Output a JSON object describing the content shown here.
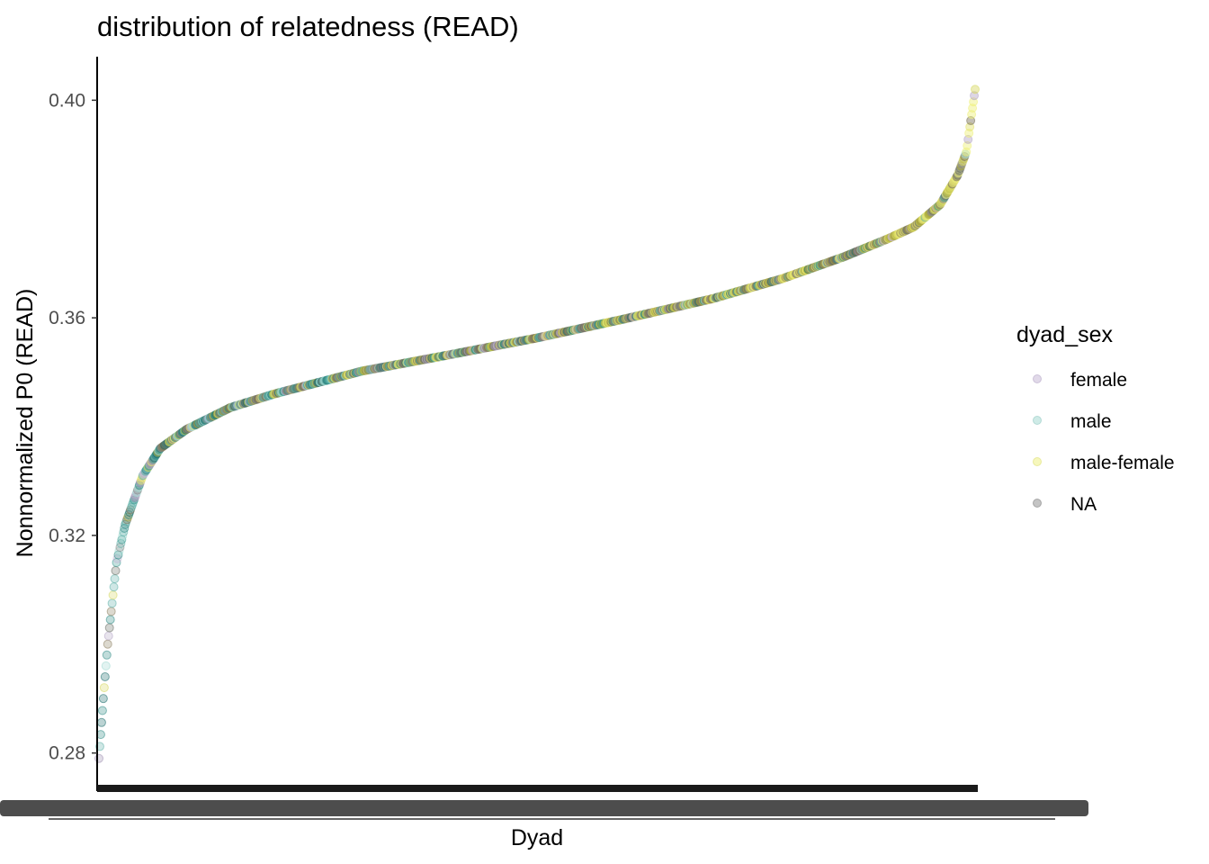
{
  "chart_data": {
    "type": "scatter",
    "title": "distribution of relatedness (READ)",
    "xlabel": "Dyad",
    "ylabel": "Nonnormalized P0 (READ)",
    "ylim": [
      0.273,
      0.408
    ],
    "y_ticks": [
      0.28,
      0.32,
      0.36,
      0.4
    ],
    "y_tick_labels": [
      "0.28",
      "0.32",
      "0.36",
      "0.40"
    ],
    "x_tick_labels": "unreadable (overlapping dyad names)",
    "grid": false,
    "legend": {
      "title": "dyad_sex",
      "position": "right",
      "entries": [
        {
          "label": "female",
          "color": "#c4b4d4"
        },
        {
          "label": "male",
          "color": "#9fd8d0"
        },
        {
          "label": "male-female",
          "color": "#eef07a"
        },
        {
          "label": "NA",
          "color": "#8a8a8a"
        }
      ]
    },
    "n_points_approx": 1000,
    "curve_profile": {
      "rank_fraction": [
        0.0,
        0.005,
        0.01,
        0.02,
        0.03,
        0.05,
        0.07,
        0.1,
        0.15,
        0.2,
        0.3,
        0.4,
        0.5,
        0.6,
        0.7,
        0.78,
        0.85,
        0.9,
        0.93,
        0.96,
        0.98,
        0.99,
        1.0
      ],
      "value": [
        0.279,
        0.29,
        0.3,
        0.315,
        0.322,
        0.331,
        0.336,
        0.3395,
        0.3435,
        0.346,
        0.3502,
        0.3532,
        0.3563,
        0.3598,
        0.3635,
        0.3672,
        0.3712,
        0.3745,
        0.3767,
        0.3808,
        0.3862,
        0.3905,
        0.402
      ]
    },
    "series": [
      {
        "name": "female",
        "color": "#c4b4d4"
      },
      {
        "name": "male",
        "color": "#9fd8d0"
      },
      {
        "name": "male-female",
        "color": "#eef07a"
      },
      {
        "name": "NA",
        "color": "#8a8a8a"
      }
    ]
  }
}
